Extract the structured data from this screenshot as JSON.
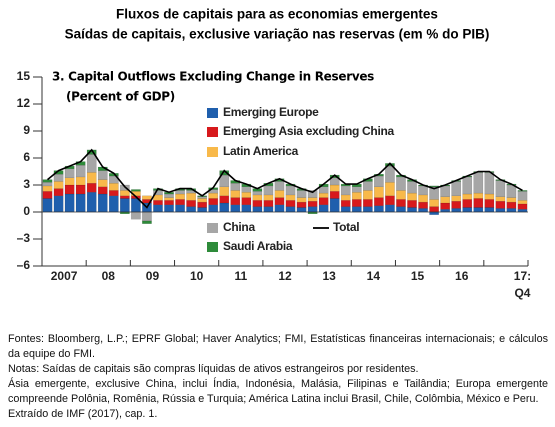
{
  "chart_data": {
    "type": "bar",
    "stacked": true,
    "title": "Fluxos de capitais para as economias emergentes",
    "subtitle": "Saídas de capitais, exclusive variação nas reservas (em % do PIB)",
    "panel_title": "3. Capital Outflows Excluding Change in Reserves",
    "y_label": "(Percent of GDP)",
    "categories": [
      null,
      "2007",
      null,
      null,
      null,
      "08",
      null,
      null,
      null,
      "09",
      null,
      null,
      null,
      "10",
      null,
      null,
      null,
      "11",
      null,
      null,
      null,
      "12",
      null,
      null,
      null,
      "13",
      null,
      null,
      null,
      "14",
      null,
      null,
      null,
      "15",
      null,
      null,
      null,
      "16",
      null,
      null,
      null,
      null,
      null,
      "17:\nQ4"
    ],
    "ylim": [
      -6,
      15
    ],
    "yticks": [
      {
        "value": -6,
        "label": "–6"
      },
      {
        "value": -3,
        "label": "–3"
      },
      0,
      3,
      6,
      9,
      12,
      15
    ],
    "series": [
      {
        "name": "Emerging Europe",
        "type": "bar",
        "color": "#1f5fad",
        "values": [
          1.5,
          1.8,
          2,
          2,
          2.2,
          2,
          1.8,
          1.5,
          1.5,
          1,
          0.8,
          0.8,
          0.8,
          0.6,
          0.5,
          0.8,
          1,
          0.8,
          0.8,
          0.6,
          0.6,
          0.8,
          0.6,
          0.5,
          0.6,
          0.8,
          1.5,
          0.6,
          0.6,
          0.6,
          0.7,
          0.8,
          0.6,
          0.5,
          0.4,
          -0.3,
          0.3,
          0.4,
          0.5,
          0.5,
          0.5,
          0.4,
          0.4,
          0.3
        ]
      },
      {
        "name": "Emerging Asia excluding China",
        "type": "bar",
        "color": "#d7191c",
        "values": [
          0.8,
          0.8,
          1,
          1,
          1,
          0.8,
          0.6,
          0.3,
          0.3,
          0.4,
          0.5,
          0.5,
          0.6,
          0.7,
          0.6,
          0.7,
          0.8,
          0.8,
          0.8,
          0.7,
          0.7,
          0.8,
          0.7,
          0.6,
          0.6,
          0.8,
          0.8,
          0.7,
          0.8,
          0.8,
          0.9,
          1,
          0.8,
          0.8,
          0.7,
          0.6,
          0.7,
          0.8,
          0.9,
          1,
          0.9,
          0.8,
          0.7,
          0.6
        ]
      },
      {
        "name": "Latin America",
        "type": "bar",
        "color": "#f8b94a",
        "values": [
          0.6,
          0.8,
          0.8,
          0.9,
          1.2,
          0.8,
          0.8,
          0.6,
          0.5,
          0.4,
          0.6,
          0.3,
          0.6,
          0.8,
          0.4,
          0.6,
          1,
          0.8,
          0.6,
          0.6,
          0.6,
          0.8,
          0.6,
          0.5,
          0.4,
          0.5,
          0.7,
          0.6,
          0.8,
          1,
          1.2,
          1.5,
          1,
          0.8,
          0.8,
          0.8,
          0.7,
          0.6,
          0.6,
          0.6,
          0.6,
          0.5,
          0.5,
          0.4
        ]
      },
      {
        "name": "China",
        "type": "bar",
        "color": "#a6a6a6",
        "values": [
          0.4,
          0.8,
          1,
          1.3,
          2,
          1,
          0.8,
          0.6,
          -0.8,
          -1,
          0.5,
          0.4,
          0.4,
          0.3,
          0.2,
          0.4,
          1.3,
          0.8,
          0.6,
          0.4,
          1,
          1,
          1,
          0.8,
          0.8,
          0.7,
          0.8,
          1,
          0.6,
          1,
          1.2,
          1.8,
          1.5,
          1.3,
          1,
          1.4,
          1.2,
          1.6,
          1.9,
          2.3,
          2.4,
          1.8,
          1.4,
          1
        ]
      },
      {
        "name": "Saudi Arabia",
        "type": "bar",
        "color": "#2e8b3a",
        "values": [
          0.3,
          0.4,
          0.3,
          0.4,
          0.5,
          0.4,
          0.3,
          -0.2,
          0.2,
          -0.3,
          0.2,
          0.2,
          0.2,
          0.2,
          0.1,
          0.2,
          0.5,
          0.3,
          0.3,
          0.3,
          0.3,
          0.3,
          0.2,
          0.2,
          -0.2,
          0.3,
          0.3,
          0.2,
          0.3,
          0.3,
          0.2,
          0.3,
          0.2,
          0.2,
          0.1,
          0.1,
          0.1,
          0.1,
          0.1,
          0.1,
          0.1,
          0.1,
          0.1,
          0.1
        ]
      },
      {
        "name": "Total",
        "type": "line",
        "color": "#000000",
        "values": [
          3.6,
          4.6,
          5.1,
          5.6,
          6.9,
          5.0,
          4.3,
          2.8,
          1.7,
          0.5,
          2.6,
          2.2,
          2.6,
          2.6,
          1.8,
          2.7,
          4.6,
          3.5,
          3.1,
          2.6,
          3.2,
          3.7,
          3.1,
          2.6,
          2.2,
          3.1,
          4.1,
          3.1,
          3.1,
          3.7,
          4.2,
          5.4,
          4.1,
          3.6,
          3.0,
          2.6,
          3.0,
          3.5,
          4.0,
          4.5,
          4.5,
          3.6,
          3.1,
          2.4
        ]
      }
    ]
  },
  "notes": [
    "Fontes: Bloomberg, L.P.; EPRF Global; Haver Analytics; FMI, Estatísticas financeiras internacionais; e cálculos da equipe do FMI.",
    "Notas: Saídas de capitais são compras líquidas de ativos estrangeiros por residentes.",
    "Ásia emergente, exclusive China, inclui Índia, Indonésia, Malásia, Filipinas e Tailândia; Europa emergente compreende Polônia, Romênia, Rússia e Turquia; América Latina inclui Brasil, Chile, Colômbia, México e Peru.",
    "Extraído de IMF (2017), cap. 1."
  ]
}
